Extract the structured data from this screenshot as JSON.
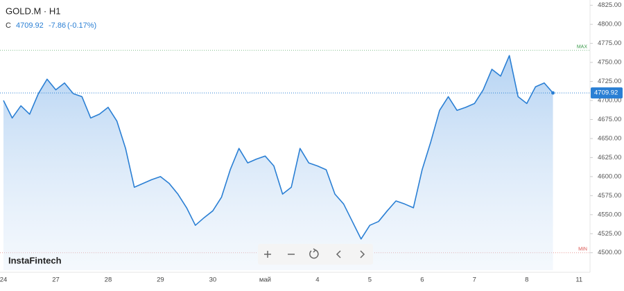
{
  "chart_data": {
    "type": "area",
    "title": "GOLD.M · H1",
    "close_prefix": "C",
    "change": -7.86,
    "change_pct": "(-0.17%)",
    "brand": "InstaFintech",
    "color": "#2a7fd4",
    "categories": [
      "24",
      null,
      null,
      null,
      null,
      null,
      "27",
      null,
      null,
      null,
      null,
      null,
      "28",
      null,
      null,
      null,
      null,
      null,
      "29",
      null,
      null,
      null,
      null,
      null,
      "30",
      null,
      null,
      null,
      null,
      null,
      "май",
      null,
      null,
      null,
      null,
      null,
      "4",
      null,
      null,
      null,
      null,
      null,
      "5",
      null,
      null,
      null,
      null,
      null,
      "6",
      null,
      null,
      null,
      null,
      null,
      "7",
      null,
      null,
      null,
      null,
      null,
      "8",
      null,
      null,
      null,
      null,
      null,
      "11",
      null
    ],
    "values": [
      4700,
      4677,
      4693,
      4682,
      4709,
      4728,
      4714,
      4723,
      4709,
      4705,
      4677,
      4682,
      4691,
      4673,
      4637,
      4586,
      4591,
      4596,
      4600,
      4591,
      4577,
      4559,
      4536,
      4546,
      4555,
      4573,
      4609,
      4637,
      4618,
      4623,
      4627,
      4614,
      4577,
      4586,
      4637,
      4618,
      4614,
      4609,
      4577,
      4564,
      4541,
      4518,
      4536,
      4541,
      4555,
      4568,
      4564,
      4559,
      4609,
      4646,
      4687,
      4705,
      4687,
      4691,
      4696,
      4714,
      4741,
      4732,
      4759,
      4705,
      4696,
      4718,
      4723,
      4709.92,
      null,
      null,
      null,
      null
    ],
    "ylim": [
      4477,
      4832
    ],
    "yticks": [
      {
        "value": 4500,
        "label": "4500.00"
      },
      {
        "value": 4525,
        "label": "4525.00"
      },
      {
        "value": 4550,
        "label": "4550.00"
      },
      {
        "value": 4575,
        "label": "4575.00"
      },
      {
        "value": 4600,
        "label": "4600.00"
      },
      {
        "value": 4625,
        "label": "4625.00"
      },
      {
        "value": 4650,
        "label": "4650.00"
      },
      {
        "value": 4675,
        "label": "4675.00"
      },
      {
        "value": 4700,
        "label": "4700.00"
      },
      {
        "value": 4725,
        "label": "4725.00"
      },
      {
        "value": 4750,
        "label": "4750.00"
      },
      {
        "value": 4775,
        "label": "4775.00"
      },
      {
        "value": 4800,
        "label": "4800.00"
      },
      {
        "value": 4825,
        "label": "4825.00"
      }
    ],
    "max_line": {
      "label": "MAX",
      "value": 4766
    },
    "min_line": {
      "label": "MIN",
      "value": 4500
    }
  }
}
